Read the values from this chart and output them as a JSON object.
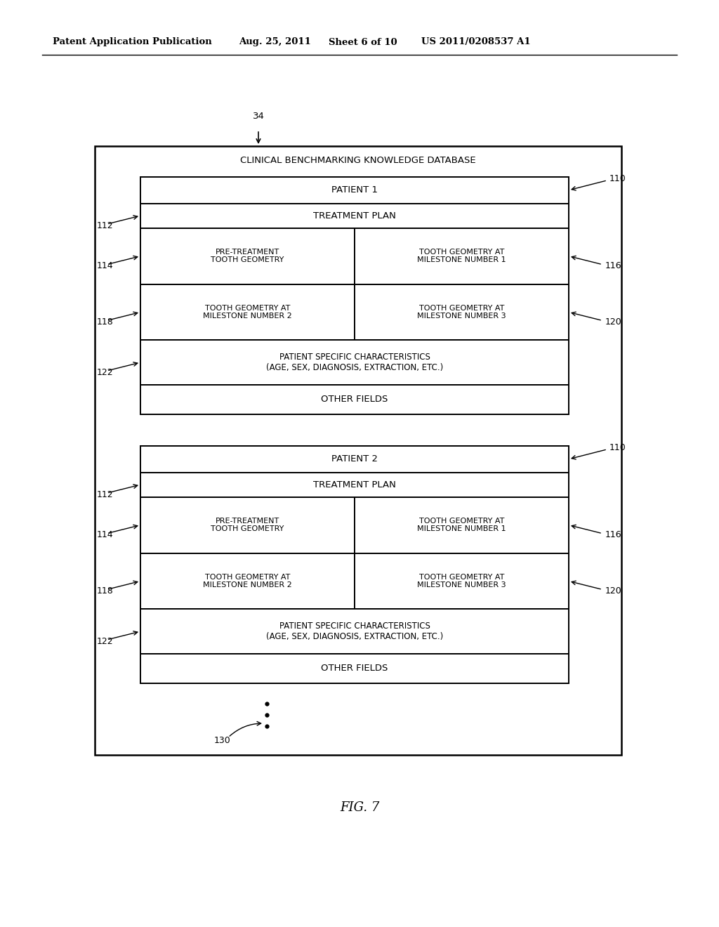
{
  "bg_color": "#ffffff",
  "header_text": "Patent Application Publication",
  "header_date": "Aug. 25, 2011",
  "header_sheet": "Sheet 6 of 10",
  "header_patent": "US 2011/0208537 A1",
  "fig_label": "FIG. 7",
  "db_label": "CLINICAL BENCHMARKING KNOWLEDGE DATABASE",
  "ref_34": "34",
  "patients": [
    {
      "label": "PATIENT 1",
      "ref_110": "110",
      "ref_112": "112",
      "ref_114": "114",
      "ref_116": "116",
      "ref_118": "118",
      "ref_120": "120",
      "ref_122": "122"
    },
    {
      "label": "PATIENT 2",
      "ref_110": "110",
      "ref_112": "112",
      "ref_114": "114",
      "ref_116": "116",
      "ref_118": "118",
      "ref_120": "120",
      "ref_122": "122"
    }
  ]
}
